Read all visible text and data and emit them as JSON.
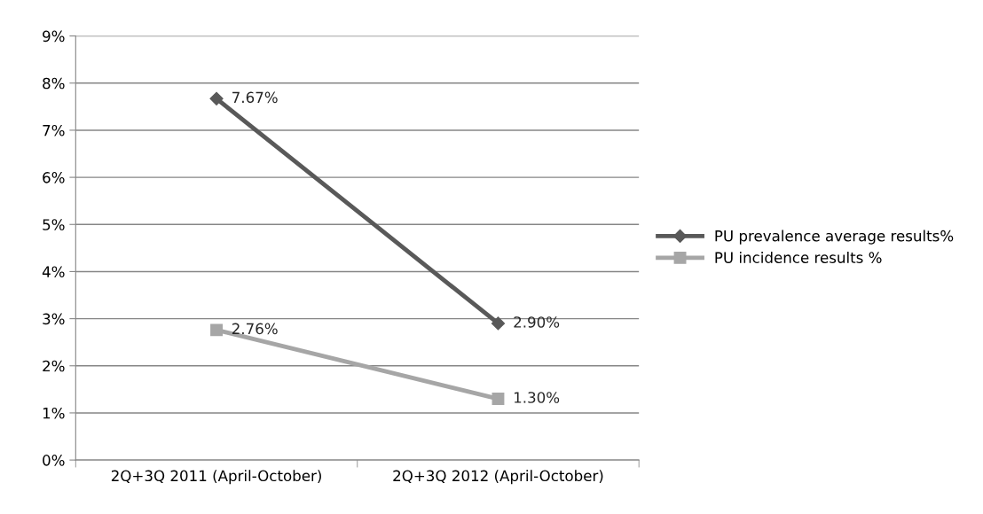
{
  "chart_data": {
    "type": "line",
    "categories": [
      "2Q+3Q 2011 (April-October)",
      "2Q+3Q 2012 (April-October)"
    ],
    "series": [
      {
        "name": "PU prevalence average results%",
        "color": "#595959",
        "values": [
          7.67,
          2.9
        ],
        "value_labels": [
          "7.67%",
          "2.90%"
        ],
        "marker": "diamond"
      },
      {
        "name": "PU incidence results %",
        "color": "#a6a6a6",
        "values": [
          2.76,
          1.3
        ],
        "value_labels": [
          "2.76%",
          "1.30%"
        ],
        "marker": "square"
      }
    ],
    "ylim": [
      0,
      9
    ],
    "yticks": [
      {
        "value": 0,
        "label": "0%"
      },
      {
        "value": 1,
        "label": "1%"
      },
      {
        "value": 2,
        "label": "2%"
      },
      {
        "value": 3,
        "label": "3%"
      },
      {
        "value": 4,
        "label": "4%"
      },
      {
        "value": 5,
        "label": "5%"
      },
      {
        "value": 6,
        "label": "6%"
      },
      {
        "value": 7,
        "label": "7%"
      },
      {
        "value": 8,
        "label": "8%"
      },
      {
        "value": 9,
        "label": "9%"
      }
    ],
    "grid": "y",
    "legend": "right",
    "line_style": "solid"
  }
}
